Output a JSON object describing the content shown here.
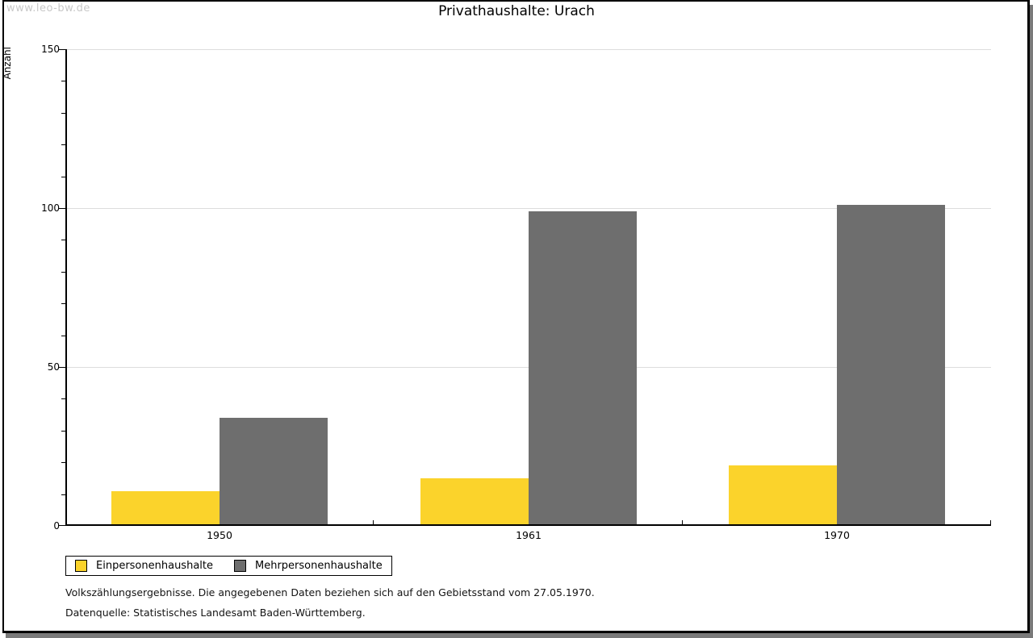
{
  "watermark": "www.leo-bw.de",
  "title": "Privathaushalte: Urach",
  "chart_data": {
    "type": "bar",
    "title": "Privathaushalte: Urach",
    "xlabel": "",
    "ylabel": "Anzahl",
    "categories": [
      "1950",
      "1961",
      "1970"
    ],
    "series": [
      {
        "name": "Einpersonenhaushalte",
        "color": "#FBD32B",
        "values": [
          11,
          15,
          19
        ]
      },
      {
        "name": "Mehrpersonenhaushalte",
        "color": "#6E6E6E",
        "values": [
          34,
          99,
          101
        ]
      }
    ],
    "ylim": [
      0,
      150
    ],
    "yticks": [
      0,
      50,
      100,
      150
    ],
    "minor_tick_step": 10,
    "grid": "horizontal",
    "legend_position": "bottom-left",
    "colors": {
      "grid": "#dddddd",
      "axis": "#000000",
      "background": "#ffffff"
    }
  },
  "footnotes": {
    "line1": "Volkszählungsergebnisse. Die angegebenen Daten beziehen sich auf den Gebietsstand vom 27.05.1970.",
    "line2": "Datenquelle: Statistisches Landesamt Baden-Württemberg."
  }
}
